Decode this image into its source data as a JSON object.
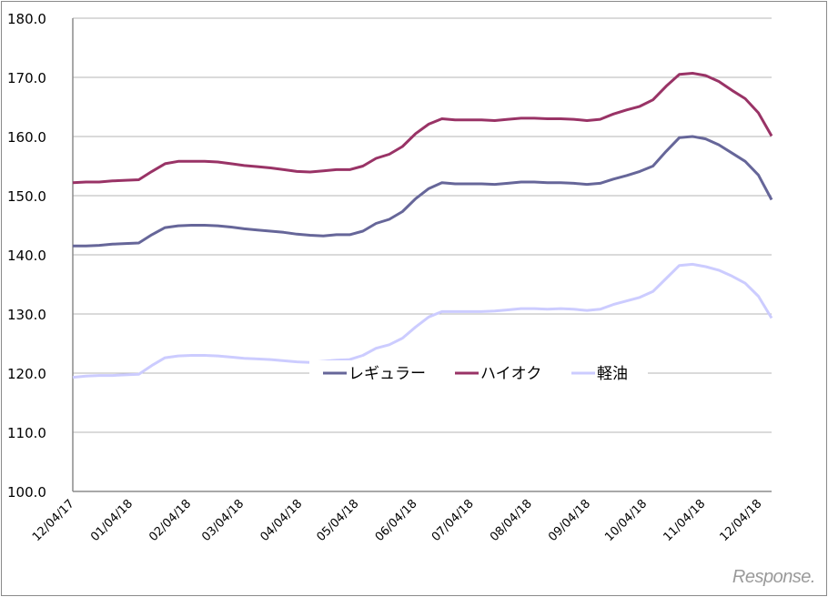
{
  "chart_data": {
    "type": "line",
    "title": "",
    "xlabel": "",
    "ylabel": "",
    "ylim": [
      100,
      180
    ],
    "yticks": [
      "100.0",
      "110.0",
      "120.0",
      "130.0",
      "140.0",
      "150.0",
      "160.0",
      "170.0",
      "180.0"
    ],
    "xticks": [
      "12/04/17",
      "01/04/18",
      "02/04/18",
      "03/04/18",
      "04/04/18",
      "05/04/18",
      "06/04/18",
      "07/04/18",
      "08/04/18",
      "09/04/18",
      "10/04/18",
      "11/04/18",
      "12/04/18"
    ],
    "x_start": "2017-12-04",
    "x_interval": "weekly",
    "grid": "horizontal",
    "legend_placement": "center",
    "series": [
      {
        "name": "レギュラー",
        "color": "#666699",
        "values": [
          141.5,
          141.5,
          141.6,
          141.8,
          141.9,
          142.0,
          143.4,
          144.6,
          144.9,
          145.0,
          145.0,
          144.9,
          144.7,
          144.4,
          144.2,
          144.0,
          143.8,
          143.5,
          143.3,
          143.2,
          143.4,
          143.4,
          144.0,
          145.3,
          146.0,
          147.3,
          149.5,
          151.2,
          152.2,
          152.0,
          152.0,
          152.0,
          151.9,
          152.1,
          152.3,
          152.3,
          152.2,
          152.2,
          152.1,
          151.9,
          152.1,
          152.8,
          153.4,
          154.1,
          155.0,
          157.5,
          159.8,
          160.0,
          159.6,
          158.6,
          157.2,
          155.8,
          153.5,
          149.3
        ]
      },
      {
        "name": "ハイオク",
        "color": "#993366",
        "values": [
          152.2,
          152.3,
          152.3,
          152.5,
          152.6,
          152.7,
          154.1,
          155.4,
          155.8,
          155.8,
          155.8,
          155.7,
          155.4,
          155.1,
          154.9,
          154.7,
          154.4,
          154.1,
          154.0,
          154.2,
          154.4,
          154.4,
          155.0,
          156.3,
          157.0,
          158.3,
          160.5,
          162.1,
          163.0,
          162.8,
          162.8,
          162.8,
          162.7,
          162.9,
          163.1,
          163.1,
          163.0,
          163.0,
          162.9,
          162.7,
          162.9,
          163.8,
          164.5,
          165.1,
          166.2,
          168.5,
          170.5,
          170.7,
          170.3,
          169.3,
          167.8,
          166.4,
          164.0,
          160.1
        ]
      },
      {
        "name": "軽油",
        "color": "#ccccff",
        "values": [
          119.3,
          119.5,
          119.6,
          119.6,
          119.7,
          119.8,
          121.3,
          122.6,
          122.9,
          123.0,
          123.0,
          122.9,
          122.7,
          122.5,
          122.4,
          122.3,
          122.1,
          121.9,
          121.8,
          122.0,
          122.2,
          122.3,
          123.0,
          124.2,
          124.8,
          125.9,
          127.8,
          129.5,
          130.4,
          130.4,
          130.4,
          130.4,
          130.5,
          130.7,
          130.9,
          130.9,
          130.8,
          130.9,
          130.8,
          130.6,
          130.8,
          131.6,
          132.2,
          132.8,
          133.8,
          136.0,
          138.2,
          138.4,
          138.0,
          137.4,
          136.4,
          135.2,
          133.0,
          129.3
        ]
      }
    ]
  },
  "watermark": "Response."
}
